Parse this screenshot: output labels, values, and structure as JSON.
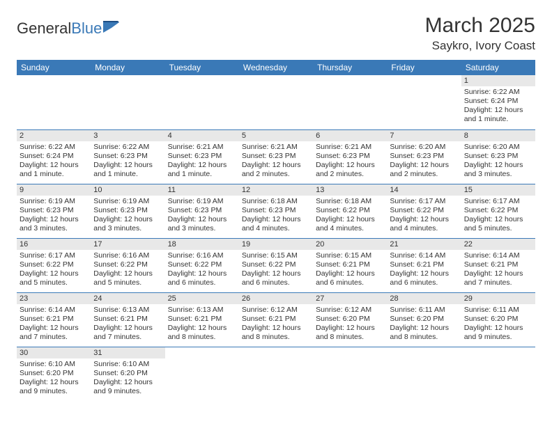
{
  "brand": {
    "part1": "General",
    "part2": "Blue"
  },
  "title": "March 2025",
  "location": "Saykro, Ivory Coast",
  "colors": {
    "header_bg": "#3a79b7",
    "header_fg": "#ffffff",
    "daynum_bg": "#e8e8e8",
    "row_border": "#3a79b7",
    "text": "#333333",
    "background": "#ffffff"
  },
  "day_names": [
    "Sunday",
    "Monday",
    "Tuesday",
    "Wednesday",
    "Thursday",
    "Friday",
    "Saturday"
  ],
  "weeks": [
    [
      null,
      null,
      null,
      null,
      null,
      null,
      {
        "n": "1",
        "sunrise": "Sunrise: 6:22 AM",
        "sunset": "Sunset: 6:24 PM",
        "daylight": "Daylight: 12 hours and 1 minute."
      }
    ],
    [
      {
        "n": "2",
        "sunrise": "Sunrise: 6:22 AM",
        "sunset": "Sunset: 6:24 PM",
        "daylight": "Daylight: 12 hours and 1 minute."
      },
      {
        "n": "3",
        "sunrise": "Sunrise: 6:22 AM",
        "sunset": "Sunset: 6:23 PM",
        "daylight": "Daylight: 12 hours and 1 minute."
      },
      {
        "n": "4",
        "sunrise": "Sunrise: 6:21 AM",
        "sunset": "Sunset: 6:23 PM",
        "daylight": "Daylight: 12 hours and 1 minute."
      },
      {
        "n": "5",
        "sunrise": "Sunrise: 6:21 AM",
        "sunset": "Sunset: 6:23 PM",
        "daylight": "Daylight: 12 hours and 2 minutes."
      },
      {
        "n": "6",
        "sunrise": "Sunrise: 6:21 AM",
        "sunset": "Sunset: 6:23 PM",
        "daylight": "Daylight: 12 hours and 2 minutes."
      },
      {
        "n": "7",
        "sunrise": "Sunrise: 6:20 AM",
        "sunset": "Sunset: 6:23 PM",
        "daylight": "Daylight: 12 hours and 2 minutes."
      },
      {
        "n": "8",
        "sunrise": "Sunrise: 6:20 AM",
        "sunset": "Sunset: 6:23 PM",
        "daylight": "Daylight: 12 hours and 3 minutes."
      }
    ],
    [
      {
        "n": "9",
        "sunrise": "Sunrise: 6:19 AM",
        "sunset": "Sunset: 6:23 PM",
        "daylight": "Daylight: 12 hours and 3 minutes."
      },
      {
        "n": "10",
        "sunrise": "Sunrise: 6:19 AM",
        "sunset": "Sunset: 6:23 PM",
        "daylight": "Daylight: 12 hours and 3 minutes."
      },
      {
        "n": "11",
        "sunrise": "Sunrise: 6:19 AM",
        "sunset": "Sunset: 6:23 PM",
        "daylight": "Daylight: 12 hours and 3 minutes."
      },
      {
        "n": "12",
        "sunrise": "Sunrise: 6:18 AM",
        "sunset": "Sunset: 6:23 PM",
        "daylight": "Daylight: 12 hours and 4 minutes."
      },
      {
        "n": "13",
        "sunrise": "Sunrise: 6:18 AM",
        "sunset": "Sunset: 6:22 PM",
        "daylight": "Daylight: 12 hours and 4 minutes."
      },
      {
        "n": "14",
        "sunrise": "Sunrise: 6:17 AM",
        "sunset": "Sunset: 6:22 PM",
        "daylight": "Daylight: 12 hours and 4 minutes."
      },
      {
        "n": "15",
        "sunrise": "Sunrise: 6:17 AM",
        "sunset": "Sunset: 6:22 PM",
        "daylight": "Daylight: 12 hours and 5 minutes."
      }
    ],
    [
      {
        "n": "16",
        "sunrise": "Sunrise: 6:17 AM",
        "sunset": "Sunset: 6:22 PM",
        "daylight": "Daylight: 12 hours and 5 minutes."
      },
      {
        "n": "17",
        "sunrise": "Sunrise: 6:16 AM",
        "sunset": "Sunset: 6:22 PM",
        "daylight": "Daylight: 12 hours and 5 minutes."
      },
      {
        "n": "18",
        "sunrise": "Sunrise: 6:16 AM",
        "sunset": "Sunset: 6:22 PM",
        "daylight": "Daylight: 12 hours and 6 minutes."
      },
      {
        "n": "19",
        "sunrise": "Sunrise: 6:15 AM",
        "sunset": "Sunset: 6:22 PM",
        "daylight": "Daylight: 12 hours and 6 minutes."
      },
      {
        "n": "20",
        "sunrise": "Sunrise: 6:15 AM",
        "sunset": "Sunset: 6:21 PM",
        "daylight": "Daylight: 12 hours and 6 minutes."
      },
      {
        "n": "21",
        "sunrise": "Sunrise: 6:14 AM",
        "sunset": "Sunset: 6:21 PM",
        "daylight": "Daylight: 12 hours and 6 minutes."
      },
      {
        "n": "22",
        "sunrise": "Sunrise: 6:14 AM",
        "sunset": "Sunset: 6:21 PM",
        "daylight": "Daylight: 12 hours and 7 minutes."
      }
    ],
    [
      {
        "n": "23",
        "sunrise": "Sunrise: 6:14 AM",
        "sunset": "Sunset: 6:21 PM",
        "daylight": "Daylight: 12 hours and 7 minutes."
      },
      {
        "n": "24",
        "sunrise": "Sunrise: 6:13 AM",
        "sunset": "Sunset: 6:21 PM",
        "daylight": "Daylight: 12 hours and 7 minutes."
      },
      {
        "n": "25",
        "sunrise": "Sunrise: 6:13 AM",
        "sunset": "Sunset: 6:21 PM",
        "daylight": "Daylight: 12 hours and 8 minutes."
      },
      {
        "n": "26",
        "sunrise": "Sunrise: 6:12 AM",
        "sunset": "Sunset: 6:21 PM",
        "daylight": "Daylight: 12 hours and 8 minutes."
      },
      {
        "n": "27",
        "sunrise": "Sunrise: 6:12 AM",
        "sunset": "Sunset: 6:20 PM",
        "daylight": "Daylight: 12 hours and 8 minutes."
      },
      {
        "n": "28",
        "sunrise": "Sunrise: 6:11 AM",
        "sunset": "Sunset: 6:20 PM",
        "daylight": "Daylight: 12 hours and 8 minutes."
      },
      {
        "n": "29",
        "sunrise": "Sunrise: 6:11 AM",
        "sunset": "Sunset: 6:20 PM",
        "daylight": "Daylight: 12 hours and 9 minutes."
      }
    ],
    [
      {
        "n": "30",
        "sunrise": "Sunrise: 6:10 AM",
        "sunset": "Sunset: 6:20 PM",
        "daylight": "Daylight: 12 hours and 9 minutes."
      },
      {
        "n": "31",
        "sunrise": "Sunrise: 6:10 AM",
        "sunset": "Sunset: 6:20 PM",
        "daylight": "Daylight: 12 hours and 9 minutes."
      },
      null,
      null,
      null,
      null,
      null
    ]
  ]
}
